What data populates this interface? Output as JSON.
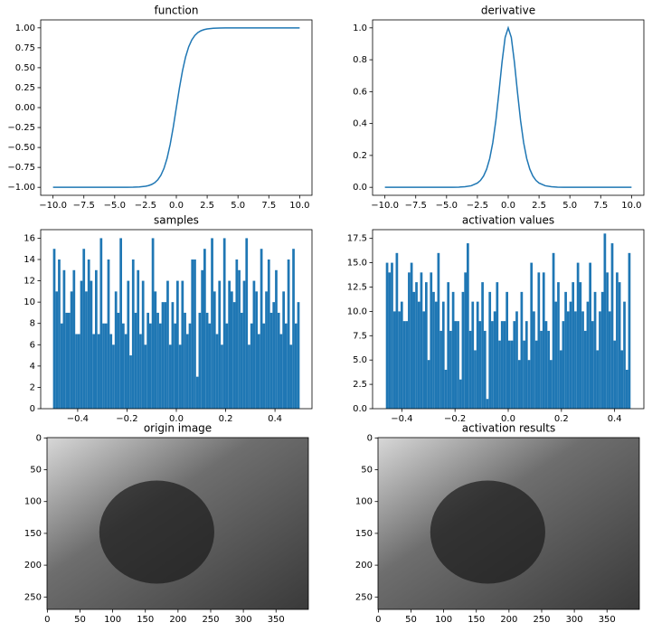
{
  "chart_data": [
    {
      "type": "line",
      "title": "function",
      "color": "#1f77b4",
      "x": [
        -10,
        -9,
        -8,
        -7,
        -6,
        -5,
        -4.5,
        -4,
        -3.5,
        -3,
        -2.5,
        -2.25,
        -2,
        -1.75,
        -1.5,
        -1.25,
        -1,
        -0.75,
        -0.5,
        -0.25,
        0,
        0.25,
        0.5,
        0.75,
        1,
        1.25,
        1.5,
        1.75,
        2,
        2.25,
        2.5,
        3,
        3.5,
        4,
        4.5,
        5,
        6,
        7,
        8,
        9,
        10
      ],
      "values": [
        -1,
        -1,
        -1,
        -1,
        -1,
        -0.9999,
        -0.9998,
        -0.9993,
        -0.9982,
        -0.9951,
        -0.9866,
        -0.978,
        -0.964,
        -0.9414,
        -0.9051,
        -0.8483,
        -0.7616,
        -0.6351,
        -0.4621,
        -0.2449,
        0,
        0.2449,
        0.4621,
        0.6351,
        0.7616,
        0.8483,
        0.9051,
        0.9414,
        0.964,
        0.978,
        0.9866,
        0.9951,
        0.9982,
        0.9993,
        0.9998,
        0.9999,
        1,
        1,
        1,
        1,
        1
      ],
      "xlim": [
        -11,
        11
      ],
      "xticks": [
        {
          "value": -10,
          "label": "−10.0"
        },
        {
          "value": -7.5,
          "label": "−7.5"
        },
        {
          "value": -5,
          "label": "−5.0"
        },
        {
          "value": -2.5,
          "label": "−2.5"
        },
        {
          "value": 0,
          "label": "0.0"
        },
        2.5,
        {
          "value": 5,
          "label": "5.0"
        },
        7.5,
        {
          "value": 10,
          "label": "10.0"
        }
      ],
      "ylim": [
        -1.1,
        1.1
      ],
      "yticks": [
        {
          "value": -1,
          "label": "−1.00"
        },
        {
          "value": -0.75,
          "label": "−0.75"
        },
        {
          "value": -0.5,
          "label": "−0.50"
        },
        {
          "value": -0.25,
          "label": "−0.25"
        },
        {
          "value": 0,
          "label": "0.00"
        },
        0.25,
        {
          "value": 0.5,
          "label": "0.50"
        },
        0.75,
        {
          "value": 1,
          "label": "1.00"
        }
      ]
    },
    {
      "type": "line",
      "title": "derivative",
      "color": "#1f77b4",
      "x": [
        -10,
        -9,
        -8,
        -7,
        -6,
        -5,
        -4.5,
        -4,
        -3.5,
        -3,
        -2.5,
        -2.25,
        -2,
        -1.75,
        -1.5,
        -1.25,
        -1,
        -0.75,
        -0.5,
        -0.25,
        0,
        0.25,
        0.5,
        0.75,
        1,
        1.25,
        1.5,
        1.75,
        2,
        2.25,
        2.5,
        3,
        3.5,
        4,
        4.5,
        5,
        6,
        7,
        8,
        9,
        10
      ],
      "values": [
        0,
        0,
        0,
        0,
        0,
        0.0002,
        0.0005,
        0.0013,
        0.0036,
        0.0099,
        0.0266,
        0.0435,
        0.0707,
        0.1138,
        0.1807,
        0.2804,
        0.42,
        0.5966,
        0.7864,
        0.94,
        1,
        0.94,
        0.7864,
        0.5966,
        0.42,
        0.2804,
        0.1807,
        0.1138,
        0.0707,
        0.0435,
        0.0266,
        0.0099,
        0.0036,
        0.0013,
        0.0005,
        0.0002,
        0,
        0,
        0,
        0,
        0
      ],
      "xlim": [
        -11,
        11
      ],
      "xticks": [
        {
          "value": -10,
          "label": "−10.0"
        },
        {
          "value": -7.5,
          "label": "−7.5"
        },
        {
          "value": -5,
          "label": "−5.0"
        },
        {
          "value": -2.5,
          "label": "−2.5"
        },
        {
          "value": 0,
          "label": "0.0"
        },
        2.5,
        {
          "value": 5,
          "label": "5.0"
        },
        7.5,
        {
          "value": 10,
          "label": "10.0"
        }
      ],
      "ylim": [
        -0.05,
        1.05
      ],
      "yticks": [
        {
          "value": 0,
          "label": "0.0"
        },
        0.2,
        0.4,
        0.6,
        0.8,
        {
          "value": 1,
          "label": "1.0"
        }
      ]
    },
    {
      "type": "histogram",
      "title": "samples",
      "color": "#1f77b4",
      "bins": [
        -0.5,
        -0.49,
        -0.48,
        -0.47,
        -0.46,
        -0.45,
        -0.44,
        -0.43,
        -0.42,
        -0.41,
        -0.4,
        -0.39,
        -0.38,
        -0.37,
        -0.36,
        -0.35,
        -0.34,
        -0.33,
        -0.32,
        -0.31,
        -0.3,
        -0.29,
        -0.28,
        -0.27,
        -0.26,
        -0.25,
        -0.24,
        -0.23,
        -0.22,
        -0.21,
        -0.2,
        -0.19,
        -0.18,
        -0.17,
        -0.16,
        -0.15,
        -0.14,
        -0.13,
        -0.12,
        -0.11,
        -0.1,
        -0.09,
        -0.08,
        -0.07,
        -0.06,
        -0.05,
        -0.04,
        -0.03,
        -0.02,
        -0.01,
        0,
        0.01,
        0.02,
        0.03,
        0.04,
        0.05,
        0.06,
        0.07,
        0.08,
        0.09,
        0.1,
        0.11,
        0.12,
        0.13,
        0.14,
        0.15,
        0.16,
        0.17,
        0.18,
        0.19,
        0.2,
        0.21,
        0.22,
        0.23,
        0.24,
        0.25,
        0.26,
        0.27,
        0.28,
        0.29,
        0.3,
        0.31,
        0.32,
        0.33,
        0.34,
        0.35,
        0.36,
        0.37,
        0.38,
        0.39,
        0.4,
        0.41,
        0.42,
        0.43,
        0.44,
        0.45,
        0.46,
        0.47,
        0.48,
        0.49,
        0.5
      ],
      "values": [
        15,
        11,
        14,
        8,
        13,
        9,
        9,
        11,
        13,
        7,
        7,
        12,
        15,
        11,
        14,
        12,
        7,
        13,
        7,
        16,
        8,
        8,
        14,
        7,
        6,
        11,
        9,
        16,
        8,
        7,
        12,
        5,
        14,
        9,
        13,
        7,
        12,
        6,
        9,
        8,
        16,
        11,
        9,
        8,
        10,
        10,
        12,
        6,
        10,
        8,
        12,
        6,
        12,
        9,
        7,
        8,
        14,
        14,
        3,
        9,
        13,
        15,
        9,
        8,
        16,
        11,
        7,
        12,
        6,
        16,
        8,
        12,
        11,
        10,
        14,
        13,
        9,
        12,
        16,
        6,
        8,
        12,
        11,
        7,
        15,
        8,
        11,
        14,
        9,
        10,
        13,
        9,
        7,
        11,
        8,
        14,
        6,
        15,
        8,
        10
      ],
      "xlim": [
        -0.55,
        0.55
      ],
      "xticks": [
        {
          "value": -0.4,
          "label": "−0.4"
        },
        {
          "value": -0.2,
          "label": "−0.2"
        },
        {
          "value": 0,
          "label": "0.0"
        },
        0.2,
        0.4
      ],
      "ylim": [
        0,
        16.8
      ],
      "yticks": [
        0,
        2,
        4,
        6,
        8,
        10,
        12,
        14,
        16
      ]
    },
    {
      "type": "histogram",
      "title": "activation values",
      "color": "#1f77b4",
      "bins": [
        -0.46,
        -0.4508,
        -0.4416,
        -0.4324,
        -0.4232,
        -0.414,
        -0.4048,
        -0.3956,
        -0.3864,
        -0.3772,
        -0.368,
        -0.3588,
        -0.3496,
        -0.3404,
        -0.3312,
        -0.322,
        -0.3128,
        -0.3036,
        -0.2944,
        -0.2852,
        -0.276,
        -0.2668,
        -0.2576,
        -0.2484,
        -0.2392,
        -0.23,
        -0.2208,
        -0.2116,
        -0.2024,
        -0.1932,
        -0.184,
        -0.1748,
        -0.1656,
        -0.1564,
        -0.1472,
        -0.138,
        -0.1288,
        -0.1196,
        -0.1104,
        -0.1012,
        -0.092,
        -0.0828,
        -0.0736,
        -0.0644,
        -0.0552,
        -0.046,
        -0.0368,
        -0.0276,
        -0.0184,
        -0.0092,
        0,
        0.0092,
        0.0184,
        0.0276,
        0.0368,
        0.046,
        0.0552,
        0.0644,
        0.0736,
        0.0828,
        0.092,
        0.1012,
        0.1104,
        0.1196,
        0.1288,
        0.138,
        0.1472,
        0.1564,
        0.1656,
        0.1748,
        0.184,
        0.1932,
        0.2024,
        0.2116,
        0.2208,
        0.23,
        0.2392,
        0.2484,
        0.2576,
        0.2668,
        0.276,
        0.2852,
        0.2944,
        0.3036,
        0.3128,
        0.322,
        0.3312,
        0.3404,
        0.3496,
        0.3588,
        0.368,
        0.3772,
        0.3864,
        0.3956,
        0.4048,
        0.414,
        0.4232,
        0.4324,
        0.4416,
        0.4508,
        0.46
      ],
      "values": [
        15,
        14,
        15,
        10,
        16,
        10,
        11,
        9,
        9,
        14,
        15,
        12,
        13,
        11,
        14,
        10,
        13,
        5,
        14,
        12,
        11,
        16,
        8,
        11,
        4,
        13,
        8,
        12,
        9,
        9,
        3,
        12,
        14,
        17,
        8,
        11,
        6,
        11,
        9,
        13,
        8,
        1,
        12,
        9,
        10,
        13,
        7,
        9,
        9,
        12,
        7,
        7,
        9,
        10,
        5,
        12,
        7,
        9,
        5,
        15,
        10,
        7,
        14,
        8,
        14,
        9,
        8,
        5,
        16,
        11,
        13,
        6,
        9,
        12,
        10,
        11,
        13,
        10,
        15,
        13,
        10,
        8,
        11,
        15,
        9,
        12,
        6,
        10,
        12,
        18,
        14,
        10,
        17,
        7,
        14,
        13,
        6,
        11,
        4,
        16
      ],
      "xlim": [
        -0.51,
        0.51
      ],
      "xticks": [
        {
          "value": -0.4,
          "label": "−0.4"
        },
        {
          "value": -0.2,
          "label": "−0.2"
        },
        {
          "value": 0,
          "label": "0.0"
        },
        0.2,
        0.4
      ],
      "ylim": [
        0,
        18.4
      ],
      "yticks": [
        {
          "value": 0,
          "label": "0.0"
        },
        2.5,
        {
          "value": 5,
          "label": "5.0"
        },
        7.5,
        {
          "value": 10,
          "label": "10.0"
        },
        12.5,
        {
          "value": 15,
          "label": "15.0"
        },
        17.5
      ]
    },
    {
      "type": "image",
      "title": "origin image",
      "xlim": [
        -0.5,
        399.5
      ],
      "xticks": [
        0,
        50,
        100,
        150,
        200,
        250,
        300,
        350
      ],
      "ylim": [
        269.5,
        -0.5
      ],
      "yticks": [
        0,
        50,
        100,
        150,
        200,
        250
      ]
    },
    {
      "type": "image",
      "title": "activation results",
      "xlim": [
        -0.5,
        399.5
      ],
      "xticks": [
        0,
        50,
        100,
        150,
        200,
        250,
        300,
        350
      ],
      "ylim": [
        269.5,
        -0.5
      ],
      "yticks": [
        0,
        50,
        100,
        150,
        200,
        250
      ]
    }
  ]
}
